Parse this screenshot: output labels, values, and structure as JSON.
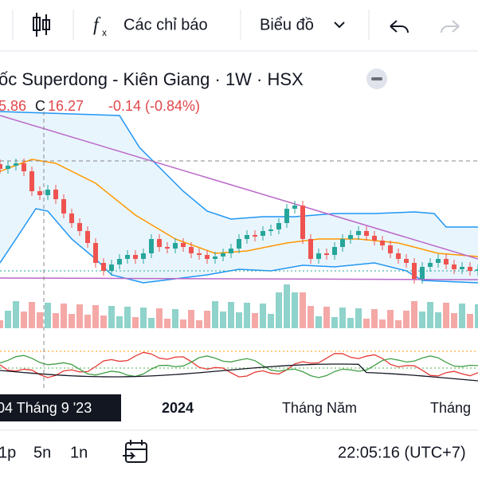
{
  "toolbar": {
    "indicators": "Các chỉ báo",
    "chart": "Biểu đồ"
  },
  "header": {
    "title": "ốc Superdong - Kiên Giang · 1W · HSX",
    "open_value": "5.86",
    "close_label": "C",
    "close_value": "16.27",
    "change": "-0.14 (-0.84%)"
  },
  "time_axis": {
    "cursor_label": "04 Tháng 9 '23",
    "labels": [
      "2024",
      "Tháng Năm",
      "Tháng"
    ]
  },
  "footer": {
    "intervals": [
      "1p",
      "5n",
      "1n"
    ],
    "clock": "22:05:16 (UTC+7)"
  }
}
